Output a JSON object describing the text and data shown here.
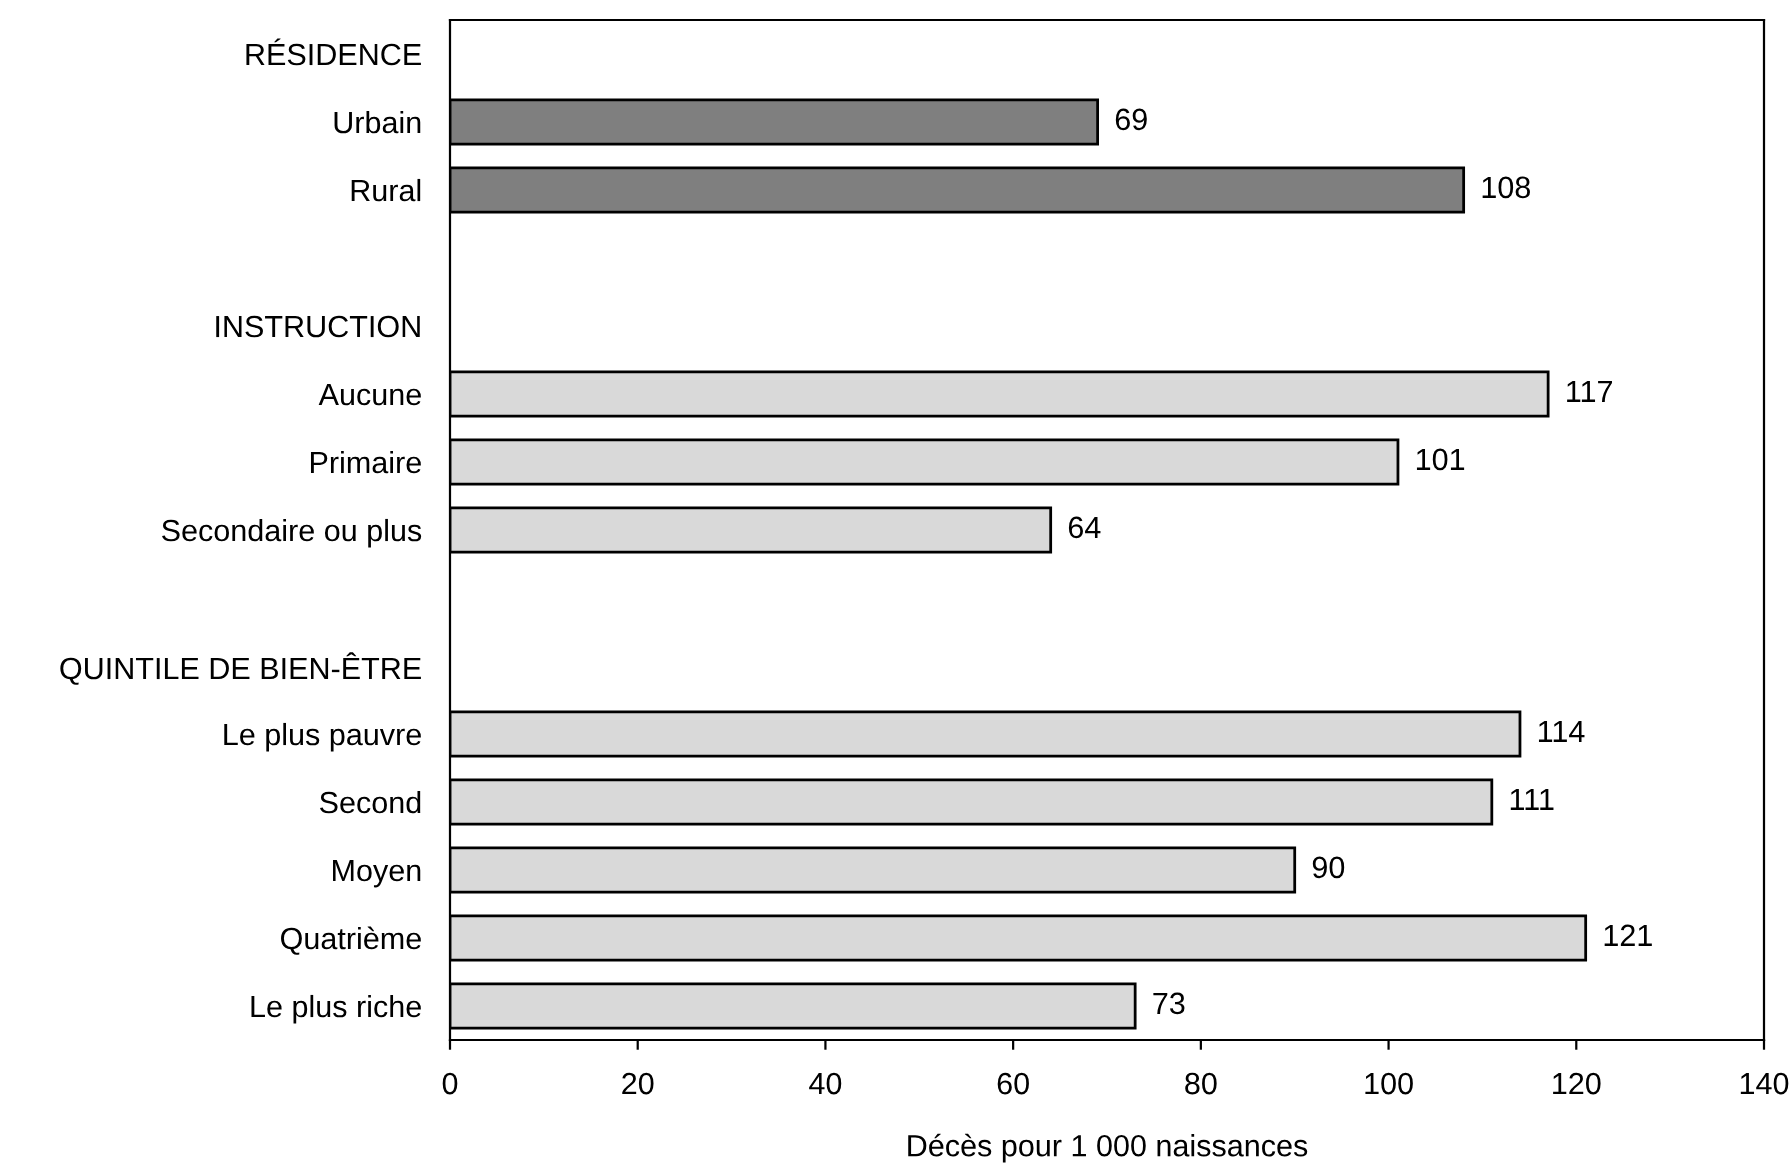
{
  "chart_data": {
    "type": "bar",
    "orientation": "horizontal",
    "xlabel": "Décès pour 1 000 naissances",
    "categories": [
      "RÉSIDENCE",
      "Urbain",
      "Rural",
      null,
      "INSTRUCTION",
      "Aucune",
      "Primaire",
      "Secondaire ou plus",
      null,
      "QUINTILE DE BIEN-ÊTRE",
      "Le plus pauvre",
      "Second",
      "Moyen",
      "Quatrième",
      "Le plus riche"
    ],
    "values": [
      null,
      69,
      108,
      null,
      null,
      117,
      101,
      64,
      null,
      null,
      114,
      111,
      90,
      121,
      73
    ],
    "colors": [
      null,
      "#7f7f7f",
      "#7f7f7f",
      null,
      null,
      "#d9d9d9",
      "#d9d9d9",
      "#d9d9d9",
      null,
      null,
      "#d9d9d9",
      "#d9d9d9",
      "#d9d9d9",
      "#d9d9d9",
      "#d9d9d9"
    ],
    "xlim": [
      0,
      140
    ],
    "xticks": [
      0,
      20,
      40,
      60,
      80,
      100,
      120,
      140
    ],
    "data_labels": true,
    "grid": false,
    "legend": false
  }
}
